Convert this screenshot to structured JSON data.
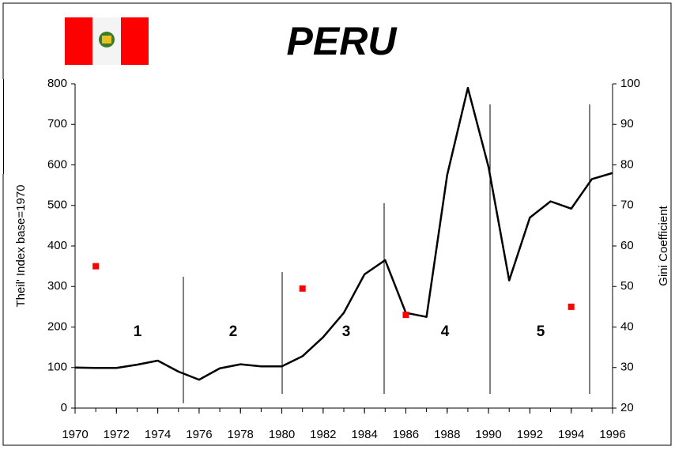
{
  "chart_data": {
    "type": "line",
    "title": "PERU",
    "y_label": "Theil' Index base=1970",
    "y2_label": "Gini Coefficient",
    "x": [
      1970,
      1971,
      1972,
      1973,
      1974,
      1975,
      1976,
      1977,
      1978,
      1979,
      1980,
      1981,
      1982,
      1983,
      1984,
      1985,
      1986,
      1987,
      1988,
      1989,
      1990,
      1991,
      1992,
      1993,
      1994,
      1995,
      1996
    ],
    "series": [
      {
        "color": "#000000",
        "values": [
          100,
          99,
          99,
          107,
          117,
          90,
          70,
          98,
          108,
          103,
          103,
          128,
          175,
          235,
          330,
          365,
          235,
          225,
          575,
          790,
          595,
          315,
          470,
          510,
          492,
          565,
          580
        ]
      },
      {
        "color": "#ff0000",
        "axis": "y2",
        "marker": "square",
        "values": [
          null,
          55,
          null,
          null,
          null,
          null,
          null,
          null,
          null,
          null,
          null,
          49.5,
          null,
          null,
          null,
          null,
          43,
          null,
          null,
          null,
          null,
          null,
          null,
          null,
          45,
          null,
          null
        ]
      }
    ],
    "annotations": [
      "1",
      "2",
      "3",
      "4",
      "5"
    ],
    "xlim": [
      1970,
      1996
    ],
    "xticks": [
      1970,
      1972,
      1974,
      1976,
      1978,
      1980,
      1982,
      1984,
      1986,
      1988,
      1990,
      1992,
      1994,
      1996
    ],
    "ylim": [
      0,
      800
    ],
    "yticks": [
      0,
      100,
      200,
      300,
      400,
      500,
      600,
      700,
      800
    ],
    "y2lim": [
      20,
      100
    ],
    "y2ticks": [
      20,
      30,
      40,
      50,
      60,
      70,
      80,
      90,
      100
    ]
  }
}
